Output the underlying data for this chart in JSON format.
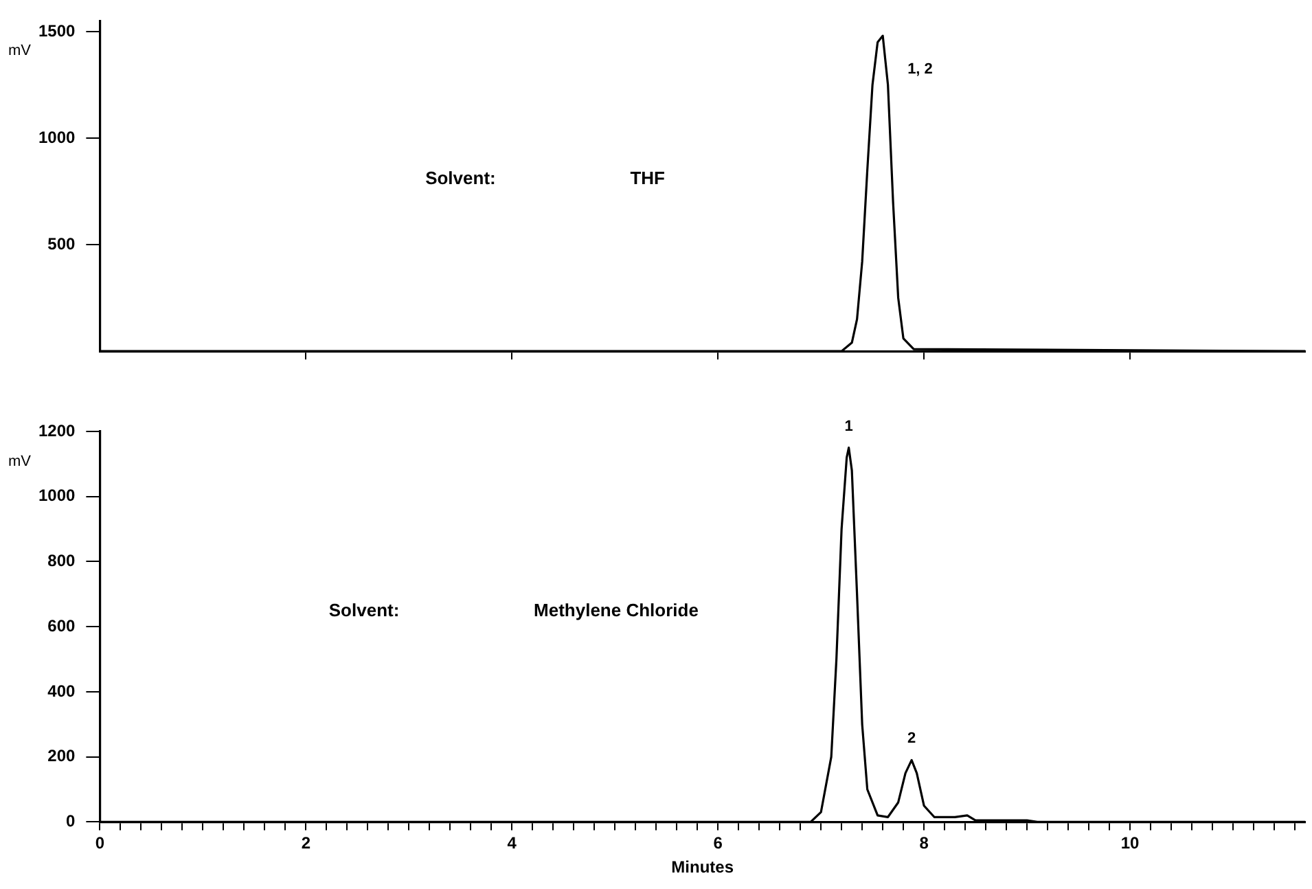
{
  "chart_data": [
    {
      "type": "line",
      "ylabel": "mV",
      "x": [
        0,
        7.2,
        7.3,
        7.35,
        7.4,
        7.45,
        7.5,
        7.55,
        7.6,
        7.65,
        7.7,
        7.75,
        7.8,
        7.9,
        11.7
      ],
      "series": [
        {
          "color": "#000000",
          "values": [
            0,
            0,
            40,
            150,
            420,
            850,
            1250,
            1450,
            1480,
            1250,
            700,
            250,
            60,
            10,
            0
          ]
        }
      ],
      "xlim": [
        0,
        11.7
      ],
      "xticks": [
        {
          "value": 2,
          "label": null
        },
        {
          "value": 4,
          "label": null
        },
        {
          "value": 6,
          "label": null
        },
        {
          "value": 8,
          "label": null
        },
        {
          "value": 10,
          "label": null
        }
      ],
      "ylim": [
        0,
        1550
      ],
      "yticks": [
        500,
        1000,
        1500
      ],
      "tick_labels": "y",
      "grid": false,
      "legend": false,
      "marker": "none",
      "line_style": "solid",
      "annotations": [
        "Solvent:",
        "THF",
        {
          "text": "1, 2",
          "x": 7.6,
          "y": 1480
        }
      ]
    },
    {
      "type": "line",
      "xlabel": "Minutes",
      "ylabel": "mV",
      "x": [
        0,
        6.9,
        7.0,
        7.1,
        7.15,
        7.2,
        7.25,
        7.27,
        7.3,
        7.35,
        7.4,
        7.45,
        7.55,
        7.65,
        7.75,
        7.82,
        7.88,
        7.93,
        8.0,
        8.1,
        8.3,
        8.42,
        8.5,
        9.0,
        9.1,
        11.7
      ],
      "series": [
        {
          "color": "#000000",
          "values": [
            0,
            0,
            30,
            200,
            500,
            900,
            1120,
            1150,
            1080,
            700,
            300,
            100,
            20,
            15,
            60,
            150,
            190,
            150,
            50,
            15,
            15,
            20,
            5,
            5,
            0,
            0
          ]
        }
      ],
      "xlim": [
        0,
        11.7
      ],
      "xticks": [
        0,
        {
          "value": 0.2,
          "label": null
        },
        {
          "value": 0.4,
          "label": null
        },
        {
          "value": 0.6,
          "label": null
        },
        {
          "value": 0.8,
          "label": null
        },
        {
          "value": 1,
          "label": null
        },
        {
          "value": 1.2,
          "label": null
        },
        {
          "value": 1.4,
          "label": null
        },
        {
          "value": 1.6,
          "label": null
        },
        {
          "value": 1.8,
          "label": null
        },
        2,
        {
          "value": 2.2,
          "label": null
        },
        {
          "value": 2.4,
          "label": null
        },
        {
          "value": 2.6,
          "label": null
        },
        {
          "value": 2.8,
          "label": null
        },
        {
          "value": 3,
          "label": null
        },
        {
          "value": 3.2,
          "label": null
        },
        {
          "value": 3.4,
          "label": null
        },
        {
          "value": 3.6,
          "label": null
        },
        {
          "value": 3.8,
          "label": null
        },
        4,
        {
          "value": 4.2,
          "label": null
        },
        {
          "value": 4.4,
          "label": null
        },
        {
          "value": 4.6,
          "label": null
        },
        {
          "value": 4.8,
          "label": null
        },
        {
          "value": 5,
          "label": null
        },
        {
          "value": 5.2,
          "label": null
        },
        {
          "value": 5.4,
          "label": null
        },
        {
          "value": 5.6,
          "label": null
        },
        {
          "value": 5.8,
          "label": null
        },
        6,
        {
          "value": 6.2,
          "label": null
        },
        {
          "value": 6.4,
          "label": null
        },
        {
          "value": 6.6,
          "label": null
        },
        {
          "value": 6.8,
          "label": null
        },
        {
          "value": 7,
          "label": null
        },
        {
          "value": 7.2,
          "label": null
        },
        {
          "value": 7.4,
          "label": null
        },
        {
          "value": 7.6,
          "label": null
        },
        {
          "value": 7.8,
          "label": null
        },
        8,
        {
          "value": 8.2,
          "label": null
        },
        {
          "value": 8.4,
          "label": null
        },
        {
          "value": 8.6,
          "label": null
        },
        {
          "value": 8.8,
          "label": null
        },
        {
          "value": 9,
          "label": null
        },
        {
          "value": 9.2,
          "label": null
        },
        {
          "value": 9.4,
          "label": null
        },
        {
          "value": 9.6,
          "label": null
        },
        {
          "value": 9.8,
          "label": null
        },
        10,
        {
          "value": 10.2,
          "label": null
        },
        {
          "value": 10.4,
          "label": null
        },
        {
          "value": 10.6,
          "label": null
        },
        {
          "value": 10.8,
          "label": null
        },
        {
          "value": 11,
          "label": null
        },
        {
          "value": 11.2,
          "label": null
        },
        {
          "value": 11.4,
          "label": null
        },
        {
          "value": 11.6,
          "label": null
        }
      ],
      "ylim": [
        0,
        1200
      ],
      "yticks": [
        0,
        200,
        400,
        600,
        800,
        1000,
        1200
      ],
      "grid": false,
      "legend": false,
      "marker": "none",
      "line_style": "solid",
      "annotations": [
        "Solvent:",
        "Methylene Chloride",
        {
          "text": "1",
          "x": 7.27,
          "y": 1150
        },
        {
          "text": "2",
          "x": 7.88,
          "y": 190
        }
      ]
    }
  ]
}
